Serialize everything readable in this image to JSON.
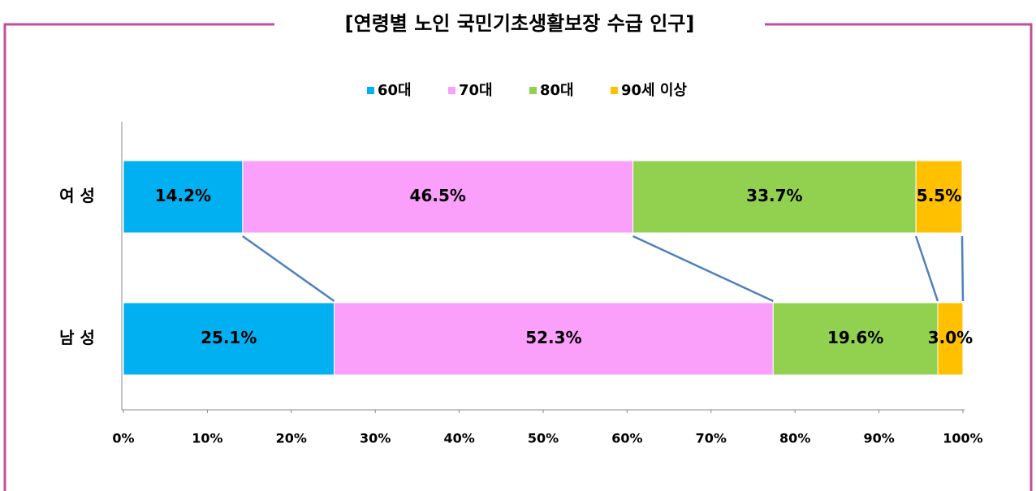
{
  "chart_data": {
    "type": "stacked_barh",
    "title": "[연령별 노인 국민기초생활보장 수급 인구]",
    "categories": [
      "여 성",
      "남 성"
    ],
    "series": [
      {
        "name": "60대",
        "color": "#00b0f0",
        "values": [
          14.2,
          25.1
        ],
        "value_labels": [
          "14.2%",
          "25.1%"
        ]
      },
      {
        "name": "70대",
        "color": "#fa9ffa",
        "values": [
          46.5,
          52.3
        ],
        "value_labels": [
          "46.5%",
          "52.3%"
        ]
      },
      {
        "name": "80대",
        "color": "#92d050",
        "values": [
          33.7,
          19.6
        ],
        "value_labels": [
          "33.7%",
          "19.6%"
        ]
      },
      {
        "name": "90세 이상",
        "color": "#ffc000",
        "values": [
          5.5,
          3.0
        ],
        "value_labels": [
          "5.5%",
          "3.0%"
        ]
      }
    ],
    "xlim": [
      0,
      100
    ],
    "xticks": [
      {
        "value": 0,
        "label": "0%"
      },
      {
        "value": 10,
        "label": "10%"
      },
      {
        "value": 20,
        "label": "20%"
      },
      {
        "value": 30,
        "label": "30%"
      },
      {
        "value": 40,
        "label": "40%"
      },
      {
        "value": 50,
        "label": "50%"
      },
      {
        "value": 60,
        "label": "60%"
      },
      {
        "value": 70,
        "label": "70%"
      },
      {
        "value": 80,
        "label": "80%"
      },
      {
        "value": 90,
        "label": "90%"
      },
      {
        "value": 100,
        "label": "100%"
      }
    ],
    "legend": "top"
  }
}
